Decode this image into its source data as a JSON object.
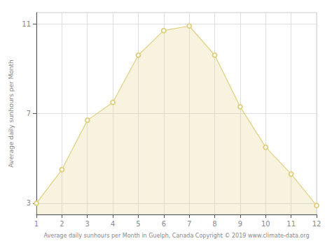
{
  "chart_data": {
    "type": "area",
    "x": [
      1,
      2,
      3,
      4,
      5,
      6,
      7,
      8,
      9,
      10,
      11,
      12
    ],
    "values": [
      3.0,
      4.5,
      6.7,
      7.5,
      9.6,
      10.7,
      10.9,
      9.6,
      7.3,
      5.5,
      4.3,
      2.9
    ],
    "color": "#E0D080",
    "marker": "circle",
    "xlabel": "Average daily sunhours per Month in Guelph, Canada Copyright © 2019 www.climate-data.org",
    "ylabel": "Average daily sunhours per Month",
    "xlim": [
      1,
      12
    ],
    "ylim": [
      2.5,
      11.5
    ],
    "xticks": [
      1,
      2,
      3,
      4,
      5,
      6,
      7,
      8,
      9,
      10,
      11,
      12
    ],
    "yticks": [
      3,
      7,
      11
    ],
    "grid": true
  }
}
